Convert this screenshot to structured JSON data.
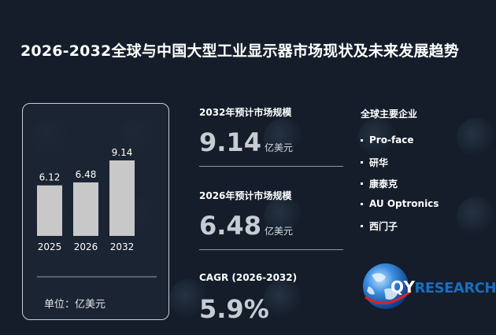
{
  "title": "2026-2032全球与中国大型工业显示器市场现状及未来发展趋势",
  "chart_data": {
    "type": "bar",
    "categories": [
      "2025",
      "2026",
      "2032"
    ],
    "values": [
      6.12,
      6.48,
      9.14
    ],
    "value_labels": [
      "6.12",
      "6.48",
      "9.14"
    ],
    "title": "",
    "xlabel": "",
    "ylabel": "",
    "grid": false,
    "bar_color": "#c8c8c8",
    "unit_label": "单位：亿美元"
  },
  "metrics": [
    {
      "label": "2032年预计市场规模",
      "value": "9.14",
      "unit": "亿美元"
    },
    {
      "label": "2026年预计市场规模",
      "value": "6.48",
      "unit": "亿美元"
    },
    {
      "label": "CAGR (2026-2032)",
      "value": "5.9%",
      "unit": ""
    }
  ],
  "companies": {
    "title": "全球主要企业",
    "items": [
      "Pro-face",
      "研华",
      "康泰克",
      "AU Optronics",
      "西门子"
    ]
  },
  "logo": {
    "q": "QY",
    "text": "RESEARCH"
  },
  "colors": {
    "background": "#141d29",
    "bar": "#c8c8c8",
    "logo_blue": "#1a6dbf"
  }
}
